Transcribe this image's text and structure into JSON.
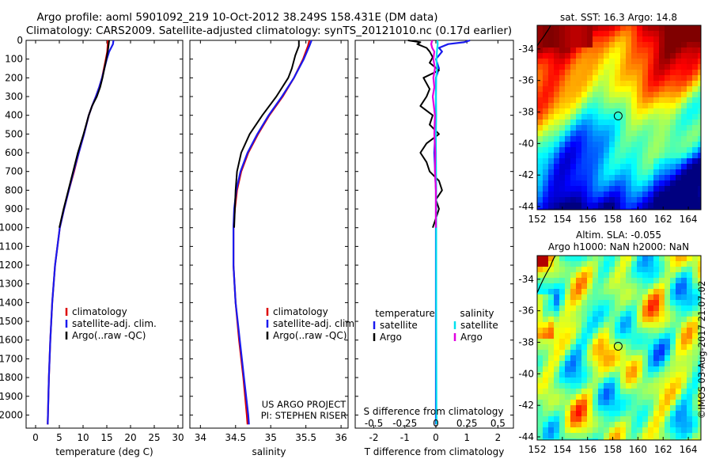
{
  "header": {
    "line1": "Argo profile: aoml 5901092_219 10-Oct-2012 38.249S 158.431E (DM data)",
    "line2": "Climatology: CARS2009. Satellite-adjusted climatology: synTS_20121010.nc (0.17d earlier)"
  },
  "side_credit": "©IMOS 03-Aug-2017 21:07:02",
  "colors": {
    "climatology": "#dd0000",
    "satellite_temperature": "#1a1aee",
    "argo_temperature": "#000000",
    "satellite_salinity": "#00e0ee",
    "argo_salinity": "#e000e0"
  },
  "chart_data": [
    {
      "id": "temperature",
      "type": "line",
      "xlabel": "temperature (deg C)",
      "xlim": [
        -2,
        31
      ],
      "xticks": [
        "0",
        "5",
        "10",
        "15",
        "20",
        "25",
        "30"
      ],
      "xtick_values": [
        0,
        5,
        10,
        15,
        20,
        25,
        30
      ],
      "ylim": [
        0,
        2070
      ],
      "yticks": [
        "0",
        "100",
        "200",
        "300",
        "400",
        "500",
        "600",
        "700",
        "800",
        "900",
        "1000",
        "1100",
        "1200",
        "1300",
        "1400",
        "1500",
        "1600",
        "1700",
        "1800",
        "1900",
        "2000"
      ],
      "ytick_values": [
        0,
        100,
        200,
        300,
        400,
        500,
        600,
        700,
        800,
        900,
        1000,
        1100,
        1200,
        1300,
        1400,
        1500,
        1600,
        1700,
        1800,
        1900,
        2000
      ],
      "legend": [
        "climatology",
        "satellite-adj. clim.",
        "Argo(..raw -QC)"
      ],
      "series": [
        {
          "name": "climatology",
          "color": "#dd0000",
          "depth": [
            0,
            20,
            60,
            100,
            150,
            200,
            250,
            300,
            350,
            400,
            500,
            600,
            700,
            800,
            900,
            1000,
            1200,
            1400,
            1600,
            1800,
            2000,
            2050
          ],
          "values": [
            15.2,
            15.2,
            15.1,
            14.8,
            14.4,
            14.0,
            13.4,
            12.7,
            11.9,
            11.2,
            10.2,
            9.1,
            8.1,
            7.0,
            6.0,
            5.1,
            4.1,
            3.5,
            3.1,
            2.8,
            2.6,
            2.55
          ]
        },
        {
          "name": "satellite-adj. clim.",
          "color": "#1a1aee",
          "depth": [
            0,
            20,
            60,
            100,
            150,
            200,
            250,
            300,
            350,
            400,
            500,
            600,
            700,
            800,
            900,
            1000,
            1200,
            1400,
            1600,
            1800,
            2000,
            2050
          ],
          "values": [
            16.4,
            16.3,
            15.5,
            15.0,
            14.5,
            14.0,
            13.4,
            12.7,
            11.9,
            11.2,
            10.2,
            9.1,
            8.0,
            7.0,
            6.0,
            5.1,
            4.1,
            3.5,
            3.1,
            2.8,
            2.6,
            2.55
          ]
        },
        {
          "name": "Argo(..raw -QC)",
          "color": "#000000",
          "depth": [
            0,
            20,
            60,
            100,
            150,
            200,
            250,
            300,
            350,
            400,
            500,
            600,
            700,
            800,
            900,
            1000
          ],
          "values": [
            15.5,
            15.4,
            15.2,
            14.9,
            14.5,
            14.1,
            13.6,
            12.9,
            11.9,
            11.2,
            10.1,
            8.9,
            7.9,
            6.9,
            5.9,
            5.0
          ]
        }
      ]
    },
    {
      "id": "salinity",
      "type": "line",
      "xlabel": "salinity",
      "xlim": [
        33.85,
        36.1
      ],
      "xticks": [
        "34",
        "34.5",
        "35",
        "35.5",
        "36"
      ],
      "xtick_values": [
        34,
        34.5,
        35,
        35.5,
        36
      ],
      "ylim": [
        0,
        2070
      ],
      "legend": [
        "climatology",
        "satellite-adj. clim.",
        "Argo(..raw -QC)"
      ],
      "annotation": [
        "US ARGO PROJECT",
        "PI: STEPHEN RISER"
      ],
      "series": [
        {
          "name": "climatology",
          "color": "#dd0000",
          "depth": [
            0,
            30,
            100,
            200,
            300,
            400,
            500,
            600,
            700,
            800,
            900,
            1000,
            1200,
            1400,
            1600,
            1800,
            2000,
            2050
          ],
          "values": [
            35.55,
            35.53,
            35.46,
            35.33,
            35.17,
            34.98,
            34.82,
            34.68,
            34.58,
            34.52,
            34.49,
            34.47,
            34.47,
            34.5,
            34.55,
            34.61,
            34.66,
            34.67
          ]
        },
        {
          "name": "satellite-adj. clim.",
          "color": "#1a1aee",
          "depth": [
            0,
            30,
            100,
            200,
            300,
            400,
            500,
            600,
            700,
            800,
            900,
            1000,
            1200,
            1400,
            1600,
            1800,
            2000,
            2050
          ],
          "values": [
            35.58,
            35.55,
            35.47,
            35.33,
            35.16,
            34.97,
            34.81,
            34.67,
            34.57,
            34.51,
            34.48,
            34.47,
            34.47,
            34.5,
            34.56,
            34.62,
            34.68,
            34.69
          ]
        },
        {
          "name": "Argo(..raw -QC)",
          "color": "#000000",
          "depth": [
            0,
            30,
            80,
            150,
            200,
            300,
            400,
            500,
            600,
            700,
            800,
            900,
            1000
          ],
          "values": [
            35.4,
            35.4,
            35.35,
            35.3,
            35.25,
            35.08,
            34.88,
            34.7,
            34.58,
            34.52,
            34.5,
            34.49,
            34.48
          ]
        }
      ]
    },
    {
      "id": "differences",
      "type": "line",
      "xlabel": "T difference from climatology",
      "xlim": [
        -2.6,
        2.5
      ],
      "xticks": [
        "-2",
        "-1",
        "0",
        "1",
        "2"
      ],
      "xtick_values": [
        -2,
        -1,
        0,
        1,
        2
      ],
      "top_xlabel": "S difference from climatology",
      "top_xticks": [
        "-0.5",
        "-0.25",
        "0",
        "0.25",
        "0.5"
      ],
      "top_xtick_values": [
        -0.5,
        -0.25,
        0,
        0.25,
        0.5
      ],
      "ylim": [
        0,
        2070
      ],
      "legend_headers": [
        "temperature",
        "salinity"
      ],
      "legend": [
        "satellite",
        "Argo",
        "satellite",
        "Argo"
      ],
      "series": [
        {
          "name": "satellite",
          "group": "temperature",
          "color": "#1a1aee",
          "depth": [
            0,
            10,
            20,
            40,
            60,
            100,
            150,
            200,
            300,
            400,
            600,
            800,
            1000,
            1400,
            2000,
            2050
          ],
          "values": [
            1.1,
            0.9,
            0.4,
            0.1,
            0.2,
            0.0,
            0.1,
            0.0,
            0.0,
            0.0,
            -0.05,
            0.0,
            0.0,
            0.0,
            0.0,
            0.0
          ]
        },
        {
          "name": "Argo",
          "group": "temperature",
          "color": "#000000",
          "depth": [
            0,
            10,
            20,
            40,
            60,
            90,
            120,
            160,
            200,
            260,
            300,
            350,
            400,
            450,
            500,
            550,
            600,
            650,
            700,
            750,
            800,
            850,
            900,
            950,
            1000
          ],
          "values": [
            -0.9,
            -0.5,
            -0.6,
            -0.3,
            -0.2,
            -0.1,
            -0.2,
            0.1,
            -0.4,
            -0.2,
            -0.3,
            -0.5,
            -0.1,
            -0.2,
            0.1,
            -0.3,
            -0.5,
            -0.3,
            -0.2,
            0.1,
            0.2,
            0.0,
            0.1,
            0.0,
            -0.1
          ]
        },
        {
          "name": "satellite",
          "group": "salinity",
          "color": "#00e0ee",
          "depth": [
            0,
            20,
            50,
            100,
            150,
            200,
            300,
            400,
            500,
            600,
            800,
            1000,
            1400,
            2000,
            2050
          ],
          "values": [
            0.05,
            0.06,
            0.04,
            0.02,
            0.04,
            0.01,
            0.0,
            0.01,
            0.0,
            0.0,
            0.01,
            0.01,
            0.01,
            0.02,
            0.02
          ]
        },
        {
          "name": "Argo",
          "group": "salinity",
          "color": "#e000e0",
          "depth": [
            0,
            20,
            40,
            60,
            100,
            150,
            200,
            250,
            300,
            400,
            500,
            600,
            700,
            800,
            900,
            1000
          ],
          "values": [
            -0.12,
            -0.15,
            -0.12,
            -0.05,
            -0.08,
            -0.03,
            -0.08,
            -0.05,
            -0.1,
            -0.03,
            -0.05,
            -0.02,
            -0.03,
            0.0,
            0.0,
            0.0
          ]
        }
      ]
    },
    {
      "id": "sst_map",
      "type": "heatmap",
      "title": "sat. SST: 16.3 Argo: 14.8",
      "xlim": [
        152,
        165
      ],
      "ylim": [
        -44.2,
        -32.5
      ],
      "xticks": [
        "152",
        "154",
        "156",
        "158",
        "160",
        "162",
        "164"
      ],
      "xtick_values": [
        152,
        154,
        156,
        158,
        160,
        162,
        164
      ],
      "yticks": [
        "-34",
        "-36",
        "-38",
        "-40",
        "-42",
        "-44"
      ],
      "ytick_values": [
        -34,
        -36,
        -38,
        -40,
        -42,
        -44
      ],
      "marker": {
        "lon": 158.43,
        "lat": -38.25
      }
    },
    {
      "id": "sla_map",
      "type": "heatmap",
      "title": "Altim. SLA: -0.055",
      "subtitle": "Argo h1000: NaN h2000: NaN",
      "xlim": [
        152,
        165
      ],
      "ylim": [
        -44.2,
        -32.5
      ],
      "xticks": [
        "152",
        "154",
        "156",
        "158",
        "160",
        "162",
        "164"
      ],
      "xtick_values": [
        152,
        154,
        156,
        158,
        160,
        162,
        164
      ],
      "yticks": [
        "-34",
        "-36",
        "-38",
        "-40",
        "-42",
        "-44"
      ],
      "ytick_values": [
        -34,
        -36,
        -38,
        -40,
        -42,
        -44
      ],
      "marker": {
        "lon": 158.43,
        "lat": -38.25
      }
    }
  ]
}
